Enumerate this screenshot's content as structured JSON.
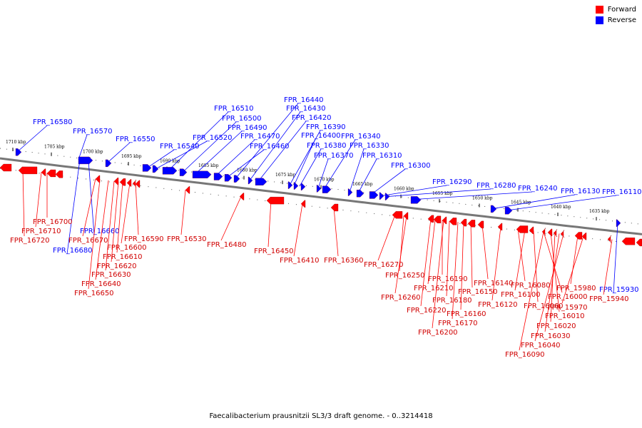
{
  "legend": {
    "items": [
      {
        "label": "Forward",
        "color": "#ff0000"
      },
      {
        "label": "Reverse",
        "color": "#0000ff"
      }
    ]
  },
  "caption": "Faecalibacterium prausnitzii SL3/3 draft genome. - 0..3214418",
  "colors": {
    "forward": "#ff0000",
    "reverse": "#0000ff",
    "backbone": "#808080"
  },
  "kbp_ticks": [
    {
      "label": "1710 kbp",
      "kbp": 1710
    },
    {
      "label": "1705 kbp",
      "kbp": 1705
    },
    {
      "label": "1700 kbp",
      "kbp": 1700
    },
    {
      "label": "1695 kbp",
      "kbp": 1695
    },
    {
      "label": "1690 kbp",
      "kbp": 1690
    },
    {
      "label": "1685 kbp",
      "kbp": 1685
    },
    {
      "label": "1680 kbp",
      "kbp": 1680
    },
    {
      "label": "1675 kbp",
      "kbp": 1675
    },
    {
      "label": "1670 kbp",
      "kbp": 1670
    },
    {
      "label": "1665 kbp",
      "kbp": 1665
    },
    {
      "label": "1660 kbp",
      "kbp": 1660
    },
    {
      "label": "1655 kbp",
      "kbp": 1655
    },
    {
      "label": "1650 kbp",
      "kbp": 1650
    },
    {
      "label": "1645 kbp",
      "kbp": 1645
    },
    {
      "label": "1640 kbp",
      "kbp": 1640
    },
    {
      "label": "1635 kbp",
      "kbp": 1635
    }
  ],
  "reverse_genes": [
    "FPR_16580",
    "FPR_16570",
    "FPR_16550",
    "FPR_16540",
    "FPR_16520",
    "FPR_16510",
    "FPR_16500",
    "FPR_16490",
    "FPR_16470",
    "FPR_16460",
    "FPR_16440",
    "FPR_16430",
    "FPR_16420",
    "FPR_16390",
    "FPR_16400",
    "FPR_16380",
    "FPR_16370",
    "FPR_16340",
    "FPR_16330",
    "FPR_16310",
    "FPR_16300",
    "FPR_16290",
    "FPR_16280",
    "FPR_16240",
    "FPR_16130",
    "FPR_16110",
    "FPR_16660",
    "FPR_16680",
    "FPR_15930"
  ],
  "forward_genes": [
    "FPR_16700",
    "FPR_16710",
    "FPR_16720",
    "FPR_16670",
    "FPR_16590",
    "FPR_16600",
    "FPR_16610",
    "FPR_16620",
    "FPR_16630",
    "FPR_16640",
    "FPR_16650",
    "FPR_16530",
    "FPR_16480",
    "FPR_16450",
    "FPR_16410",
    "FPR_16360",
    "FPR_16270",
    "FPR_16250",
    "FPR_16260",
    "FPR_16190",
    "FPR_16210",
    "FPR_16180",
    "FPR_16220",
    "FPR_16160",
    "FPR_16170",
    "FPR_16200",
    "FPR_16140",
    "FPR_16150",
    "FPR_16120",
    "FPR_16080",
    "FPR_16100",
    "FPR_16060",
    "FPR_16000",
    "FPR_16010",
    "FPR_16020",
    "FPR_16030",
    "FPR_16040",
    "FPR_16090",
    "FPR_15980",
    "FPR_15970",
    "FPR_15940"
  ]
}
